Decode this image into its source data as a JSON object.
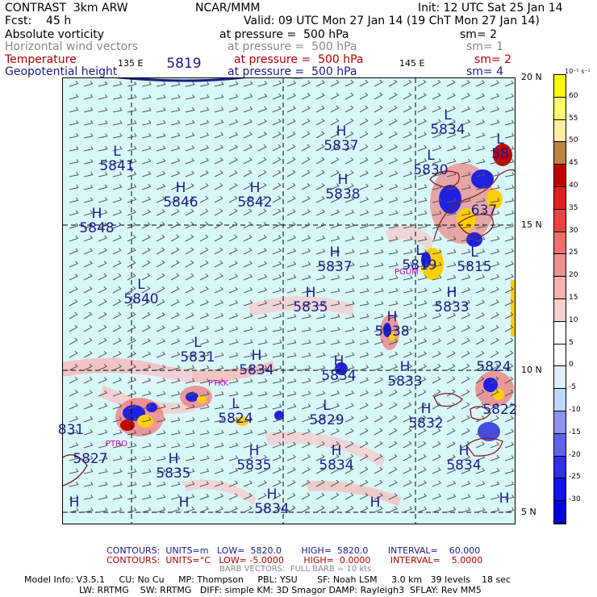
{
  "header": {
    "model": "CONTRAST  3km ARW",
    "org": "NCAR/MMM",
    "init": "Init: 12 UTC Sat 25 Jan 14",
    "fcst": "Fcst:    45 h",
    "valid": "Valid: 09 UTC Mon 27 Jan 14 (19 ChT Mon 27 Jan 14)"
  },
  "fields": [
    {
      "name": "Absolute vorticity",
      "pressure": "at pressure =  500 hPa",
      "sm": "sm= 2",
      "color": "#000000"
    },
    {
      "name": "Horizontal wind vectors",
      "pressure": "at pressure =  500 hPa",
      "sm": "sm= 1",
      "color": "#888888"
    },
    {
      "name": "Temperature",
      "pressure": "at pressure =  500 hPa",
      "sm": "sm= 2",
      "color": "#b00000"
    },
    {
      "name": "Geopotential height",
      "pressure": "at pressure =  500 hPa",
      "sm": "sm= 4",
      "color": "#1a1a8c"
    }
  ],
  "axes": {
    "lon_labels": [
      "135 E",
      "145 E"
    ],
    "lat_labels": [
      "20 N",
      "15 N",
      "10 N",
      "5 N"
    ]
  },
  "height_labels": [
    {
      "letter": "",
      "value": "5819"
    },
    {
      "letter": "L",
      "value": "5834"
    },
    {
      "letter": "H",
      "value": "5837"
    },
    {
      "letter": "L",
      "value": "58"
    },
    {
      "letter": "L",
      "value": "5841"
    },
    {
      "letter": "L",
      "value": "5830"
    },
    {
      "letter": "H",
      "value": "5846"
    },
    {
      "letter": "H",
      "value": "5842"
    },
    {
      "letter": "H",
      "value": "5838"
    },
    {
      "letter": "H",
      "value": "5848"
    },
    {
      "letter": "",
      "value": "637"
    },
    {
      "letter": "H",
      "value": "5837"
    },
    {
      "letter": "L",
      "value": "5819"
    },
    {
      "letter": "L",
      "value": "5815"
    },
    {
      "letter": "L",
      "value": "5840"
    },
    {
      "letter": "H",
      "value": "5835"
    },
    {
      "letter": "H",
      "value": "5833"
    },
    {
      "letter": "H",
      "value": "5838"
    },
    {
      "letter": "L",
      "value": "5831"
    },
    {
      "letter": "H",
      "value": "5834"
    },
    {
      "letter": "H",
      "value": "5834"
    },
    {
      "letter": "H",
      "value": "5833"
    },
    {
      "letter": "",
      "value": "5824"
    },
    {
      "letter": "L",
      "value": "5824"
    },
    {
      "letter": "L",
      "value": "5829"
    },
    {
      "letter": "H",
      "value": "5832"
    },
    {
      "letter": "",
      "value": "5822"
    },
    {
      "letter": "",
      "value": "831"
    },
    {
      "letter": "",
      "value": "5827"
    },
    {
      "letter": "H",
      "value": "5835"
    },
    {
      "letter": "H",
      "value": "5835"
    },
    {
      "letter": "H",
      "value": "5834"
    },
    {
      "letter": "H",
      "value": "5834"
    },
    {
      "letter": "H",
      "value": ""
    },
    {
      "letter": "H",
      "value": ""
    },
    {
      "letter": "H",
      "value": "5834"
    },
    {
      "letter": "H",
      "value": ""
    },
    {
      "letter": "H",
      "value": ""
    }
  ],
  "place_labels": [
    "PGUM",
    "PTKK",
    "PTRO"
  ],
  "colorbar": {
    "unit": "10⁻⁵ s⁻¹",
    "ticks": [
      "60",
      "55",
      "50",
      "45",
      "40",
      "35",
      "30",
      "25",
      "20",
      "15",
      "10",
      "5",
      "0",
      "-5",
      "-10",
      "-15",
      "-20",
      "-25",
      "-30"
    ],
    "colors": [
      "#ffff00",
      "#ffff66",
      "#fff0a0",
      "#c08040",
      "#c00000",
      "#e02020",
      "#f04040",
      "#f07070",
      "#f09090",
      "#f8b0b0",
      "#f8d0d0",
      "#ffffff",
      "#ffffff",
      "#e0f0ff",
      "#c0d8ff",
      "#9090f0",
      "#6060f0",
      "#3030e8",
      "#1010f0",
      "#0000e0"
    ]
  },
  "footer": {
    "contours1": "CONTOURS:  UNITS=m   LOW=  5820.0       HIGH=  5820.0       INTERVAL=    60.000",
    "contours2": "CONTOURS:  UNITS=°C   LOW= -5.0000       HIGH=  0.0000       INTERVAL=    5.0000",
    "barbs": "BARB VECTORS:  FULL BARB = 10 kts",
    "model_info_1": "Model Info: V3.5.1     CU: No Cu     MP: Thompson     PBL: YSU       SF: Noah LSM     3.0 km   39 levels    18 sec",
    "model_info_2": "LW: RRTMG    SW: RRTMG   DIFF: simple KM: 3D Smagor DAMP: Rayleigh3  SFLAY: Rev MM5"
  }
}
